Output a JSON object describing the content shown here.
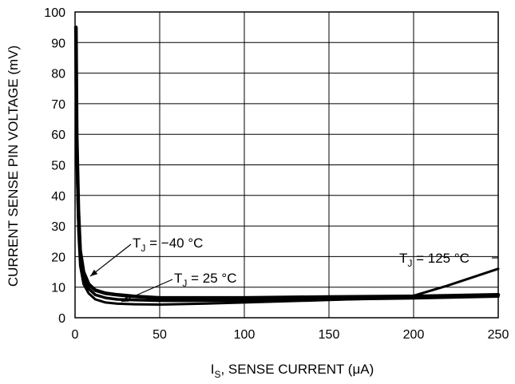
{
  "chart_data": {
    "type": "line",
    "xlabel_main": "I",
    "xlabel_sub": "S",
    "xlabel_rest": ", SENSE CURRENT (",
    "xlabel_mu": "μ",
    "xlabel_end": "A)",
    "ylabel": "CURRENT SENSE PIN VOLTAGE (mV)",
    "xlim": [
      0,
      250
    ],
    "ylim": [
      0,
      100
    ],
    "x_ticks": [
      0,
      50,
      100,
      150,
      200,
      250
    ],
    "y_ticks": [
      0,
      10,
      20,
      30,
      40,
      50,
      60,
      70,
      80,
      90,
      100
    ],
    "x_tick_labels": [
      "0",
      "50",
      "100",
      "150",
      "200",
      "250"
    ],
    "y_tick_labels": [
      "0",
      "10",
      "20",
      "30",
      "40",
      "50",
      "60",
      "70",
      "80",
      "90",
      "100"
    ],
    "grid": true,
    "series": [
      {
        "name": "T_J = -40 °C",
        "label_main": "T",
        "label_sub": "J",
        "label_rest": " = −40 °C",
        "x": [
          0.5,
          1,
          2,
          3,
          5,
          8,
          12,
          18,
          25,
          35,
          50,
          75,
          100,
          150,
          200,
          250
        ],
        "y": [
          95,
          60,
          35,
          22,
          15,
          11,
          9,
          8,
          7.5,
          7,
          6.5,
          6.5,
          6.5,
          6.8,
          7,
          7.5
        ]
      },
      {
        "name": "T_J = 25 °C",
        "label_main": "T",
        "label_sub": "J",
        "label_rest": " = 25 °C",
        "x": [
          0.5,
          1,
          2,
          3,
          5,
          8,
          12,
          18,
          25,
          35,
          50,
          75,
          100,
          150,
          200,
          250
        ],
        "y": [
          93,
          57,
          32,
          20,
          13,
          9.5,
          7.5,
          6.5,
          6,
          5.8,
          5.6,
          5.6,
          5.7,
          6,
          6.4,
          7
        ]
      },
      {
        "name": "T_J = 125 °C",
        "label_main": "T",
        "label_sub": "J",
        "label_rest": " = 125 °C",
        "x": [
          0.5,
          1,
          2,
          3,
          5,
          8,
          12,
          18,
          25,
          35,
          50,
          75,
          100,
          150,
          190,
          200,
          220,
          250
        ],
        "y": [
          90,
          52,
          28,
          17,
          11,
          8,
          6,
          5,
          4.6,
          4.4,
          4.3,
          4.6,
          5,
          5.8,
          6.5,
          7.2,
          10.5,
          16
        ]
      }
    ]
  }
}
